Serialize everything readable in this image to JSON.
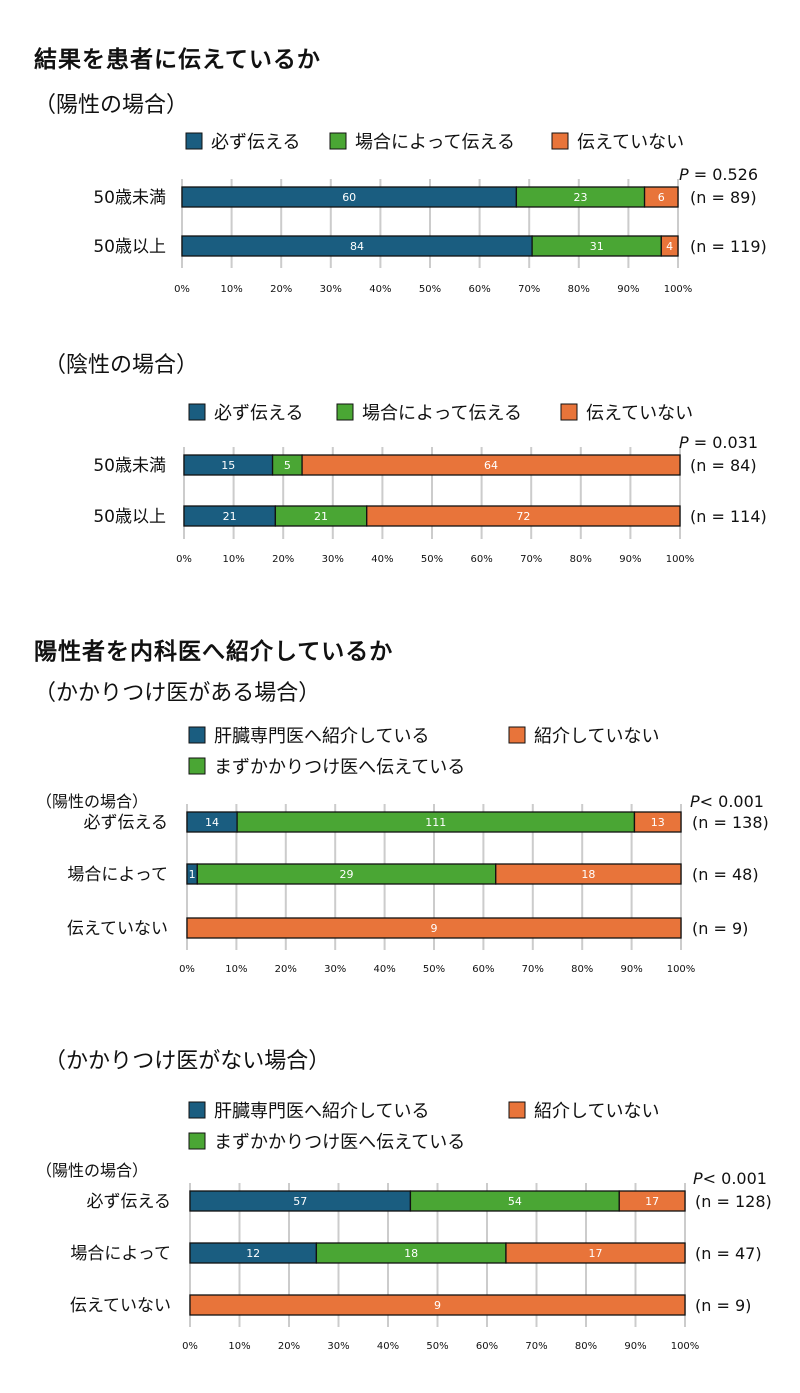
{
  "sections": [
    {
      "title": "結果を患者に伝えているか",
      "subtitle": "（陽性の場合）"
    },
    {
      "title": "陽性者を内科医へ紹介しているか",
      "subtitle": "（かかりつけ医がある場合）"
    }
  ],
  "colors": {
    "blue": "#1a5d80",
    "green": "#4aa634",
    "orange": "#e8743a",
    "grid": "#cccccc",
    "border": "#111111"
  },
  "chart_data": [
    {
      "type": "bar",
      "orientation": "horizontal",
      "stacked": "percent",
      "title": "（陽性の場合）",
      "legend": [
        "必ず伝える",
        "場合によって伝える",
        "伝えていない"
      ],
      "categories": [
        "50歳未満",
        "50歳以上"
      ],
      "series": [
        {
          "name": "必ず伝える",
          "color": "#1a5d80",
          "values": [
            60,
            84
          ]
        },
        {
          "name": "場合によって伝える",
          "color": "#4aa634",
          "values": [
            23,
            31
          ]
        },
        {
          "name": "伝えていない",
          "color": "#e8743a",
          "values": [
            6,
            4
          ]
        }
      ],
      "n_labels": [
        "(n = 89)",
        "(n = 119)"
      ],
      "p_value": {
        "prefix": "P",
        "rest": " = 0.526"
      },
      "xticks": [
        "0%",
        "10%",
        "20%",
        "30%",
        "40%",
        "50%",
        "60%",
        "70%",
        "80%",
        "90%",
        "100%"
      ],
      "xlim": [
        0,
        100
      ]
    },
    {
      "type": "bar",
      "orientation": "horizontal",
      "stacked": "percent",
      "title": "（陰性の場合）",
      "legend": [
        "必ず伝える",
        "場合によって伝える",
        "伝えていない"
      ],
      "categories": [
        "50歳未満",
        "50歳以上"
      ],
      "series": [
        {
          "name": "必ず伝える",
          "color": "#1a5d80",
          "values": [
            15,
            21
          ]
        },
        {
          "name": "場合によって伝える",
          "color": "#4aa634",
          "values": [
            5,
            21
          ]
        },
        {
          "name": "伝えていない",
          "color": "#e8743a",
          "values": [
            64,
            72
          ]
        }
      ],
      "n_labels": [
        "(n = 84)",
        "(n = 114)"
      ],
      "p_value": {
        "prefix": "P",
        "rest": " = 0.031"
      },
      "xticks": [
        "0%",
        "10%",
        "20%",
        "30%",
        "40%",
        "50%",
        "60%",
        "70%",
        "80%",
        "90%",
        "100%"
      ],
      "xlim": [
        0,
        100
      ]
    },
    {
      "type": "bar",
      "orientation": "horizontal",
      "stacked": "percent",
      "title": "（かかりつけ医がある場合）",
      "legend": [
        "肝臓専門医へ紹介している",
        "紹介していない",
        "まずかかりつけ医へ伝えている"
      ],
      "group_label": "（陽性の場合）",
      "categories": [
        "必ず伝える",
        "場合によって",
        "伝えていない"
      ],
      "series": [
        {
          "name": "肝臓専門医へ紹介している",
          "color": "#1a5d80",
          "values": [
            14,
            1,
            0
          ]
        },
        {
          "name": "まずかかりつけ医へ伝えている",
          "color": "#4aa634",
          "values": [
            111,
            29,
            0
          ]
        },
        {
          "name": "紹介していない",
          "color": "#e8743a",
          "values": [
            13,
            18,
            9
          ]
        }
      ],
      "n_labels": [
        "(n = 138)",
        "(n = 48)",
        "(n = 9)"
      ],
      "p_value": {
        "prefix": "P",
        "rest": "< 0.001"
      },
      "xticks": [
        "0%",
        "10%",
        "20%",
        "30%",
        "40%",
        "50%",
        "60%",
        "70%",
        "80%",
        "90%",
        "100%"
      ],
      "xlim": [
        0,
        100
      ]
    },
    {
      "type": "bar",
      "orientation": "horizontal",
      "stacked": "percent",
      "title": "（かかりつけ医がない場合）",
      "legend": [
        "肝臓専門医へ紹介している",
        "紹介していない",
        "まずかかりつけ医へ伝えている"
      ],
      "group_label": "（陽性の場合）",
      "categories": [
        "必ず伝える",
        "場合によって",
        "伝えていない"
      ],
      "series": [
        {
          "name": "肝臓専門医へ紹介している",
          "color": "#1a5d80",
          "values": [
            57,
            12,
            0
          ]
        },
        {
          "name": "まずかかりつけ医へ伝えている",
          "color": "#4aa634",
          "values": [
            54,
            18,
            0
          ]
        },
        {
          "name": "紹介していない",
          "color": "#e8743a",
          "values": [
            17,
            17,
            9
          ]
        }
      ],
      "n_labels": [
        "(n = 128)",
        "(n = 47)",
        "(n = 9)"
      ],
      "p_value": {
        "prefix": "P",
        "rest": "< 0.001"
      },
      "xticks": [
        "0%",
        "10%",
        "20%",
        "30%",
        "40%",
        "50%",
        "60%",
        "70%",
        "80%",
        "90%",
        "100%"
      ],
      "xlim": [
        0,
        100
      ]
    }
  ]
}
